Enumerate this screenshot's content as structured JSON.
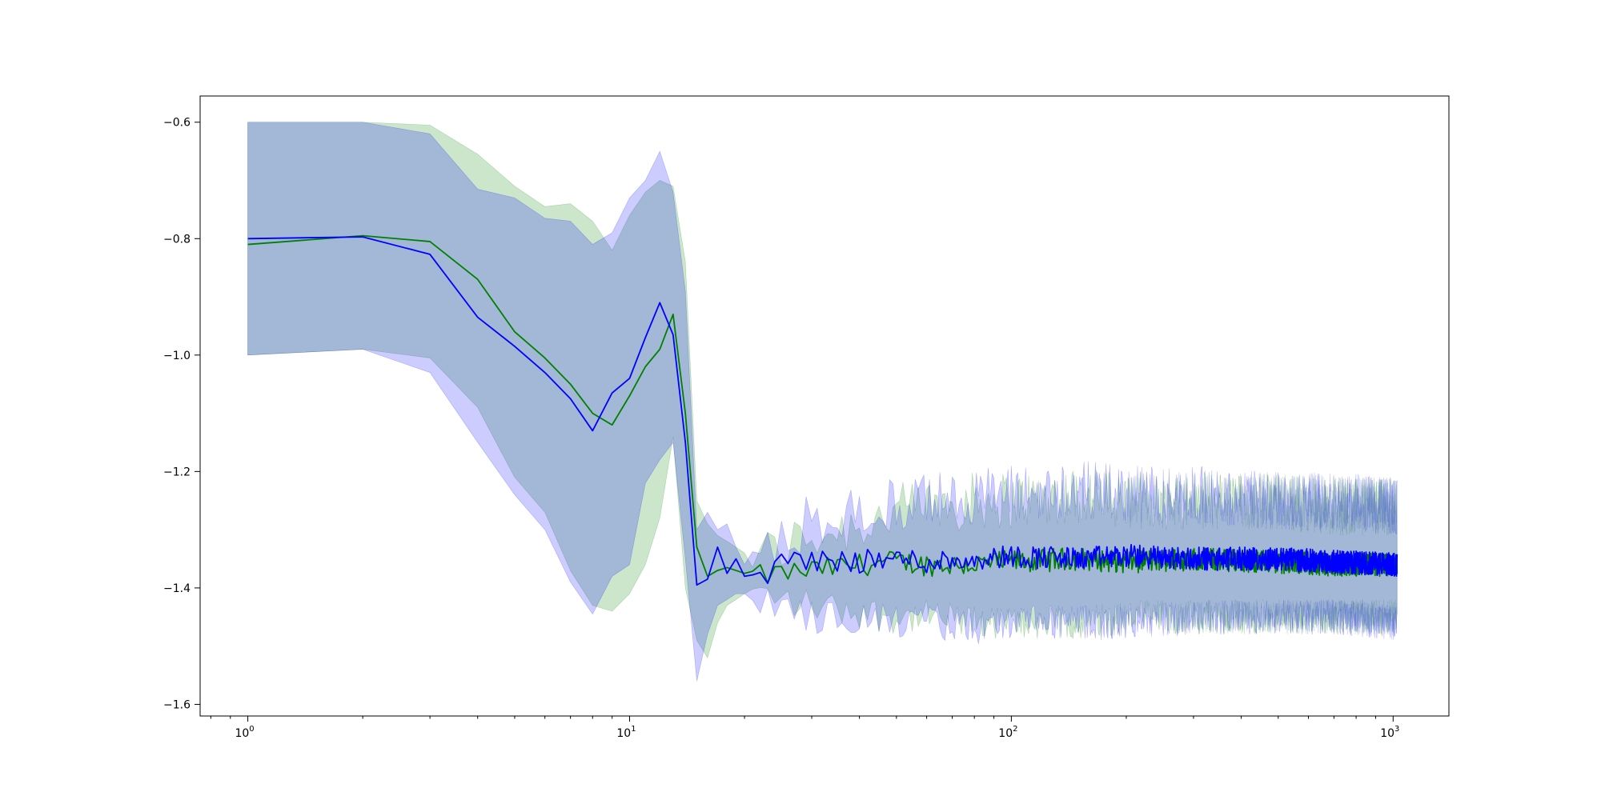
{
  "chart_data": {
    "type": "line",
    "title": "",
    "xlabel": "",
    "ylabel": "",
    "x_scale": "log",
    "xlim": [
      0.75,
      1400
    ],
    "ylim": [
      -1.62,
      -0.555
    ],
    "grid": false,
    "legend": "none",
    "x_ticks": [
      {
        "value": 1,
        "base": "10",
        "exp": "0"
      },
      {
        "value": 10,
        "base": "10",
        "exp": "1"
      },
      {
        "value": 100,
        "base": "10",
        "exp": "2"
      },
      {
        "value": 1000,
        "base": "10",
        "exp": "3"
      }
    ],
    "y_ticks": [
      {
        "value": -0.6,
        "label": "−0.6"
      },
      {
        "value": -0.8,
        "label": "−0.8"
      },
      {
        "value": -1.0,
        "label": "−1.0"
      },
      {
        "value": -1.2,
        "label": "−1.2"
      },
      {
        "value": -1.4,
        "label": "−1.4"
      },
      {
        "value": -1.6,
        "label": "−1.6"
      }
    ],
    "series": [
      {
        "color": "#008000",
        "band_color": "#008000",
        "band_opacity": 0.2,
        "x": [
          1,
          2,
          3,
          4,
          5,
          6,
          7,
          8,
          9,
          10,
          11,
          12,
          13,
          14,
          15,
          16,
          17,
          18,
          19,
          20,
          22,
          25,
          30,
          40,
          50,
          60,
          80,
          100,
          150,
          200,
          300,
          500,
          700,
          1024
        ],
        "mean": [
          -0.81,
          -0.795,
          -0.805,
          -0.87,
          -0.96,
          -1.005,
          -1.05,
          -1.1,
          -1.12,
          -1.07,
          -1.02,
          -0.99,
          -0.93,
          -1.1,
          -1.33,
          -1.38,
          -1.37,
          -1.365,
          -1.37,
          -1.375,
          -1.38,
          -1.375,
          -1.37,
          -1.36,
          -1.355,
          -1.36,
          -1.36,
          -1.355,
          -1.35,
          -1.355,
          -1.35,
          -1.355,
          -1.36,
          -1.36
        ],
        "upper": [
          -0.6,
          -0.6,
          -0.605,
          -0.655,
          -0.71,
          -0.745,
          -0.74,
          -0.77,
          -0.82,
          -0.76,
          -0.72,
          -0.7,
          -0.71,
          -0.84,
          -1.25,
          -1.29,
          -1.31,
          -1.32,
          -1.33,
          -1.34,
          -1.35,
          -1.33,
          -1.31,
          -1.29,
          -1.27,
          -1.26,
          -1.25,
          -1.25,
          -1.24,
          -1.25,
          -1.25,
          -1.25,
          -1.26,
          -1.26
        ],
        "lower": [
          -1.0,
          -0.99,
          -1.005,
          -1.09,
          -1.21,
          -1.27,
          -1.37,
          -1.43,
          -1.44,
          -1.41,
          -1.36,
          -1.28,
          -1.14,
          -1.4,
          -1.49,
          -1.52,
          -1.46,
          -1.43,
          -1.42,
          -1.41,
          -1.41,
          -1.42,
          -1.43,
          -1.44,
          -1.45,
          -1.45,
          -1.46,
          -1.46,
          -1.46,
          -1.45,
          -1.45,
          -1.45,
          -1.45,
          -1.45
        ]
      },
      {
        "color": "#0000ff",
        "band_color": "#0000ff",
        "band_opacity": 0.2,
        "x": [
          1,
          2,
          3,
          4,
          5,
          6,
          7,
          8,
          9,
          10,
          11,
          12,
          13,
          14,
          15,
          16,
          17,
          18,
          19,
          20,
          22,
          25,
          30,
          40,
          50,
          60,
          80,
          100,
          150,
          200,
          300,
          500,
          700,
          1024
        ],
        "mean": [
          -0.8,
          -0.797,
          -0.827,
          -0.935,
          -0.985,
          -1.03,
          -1.075,
          -1.13,
          -1.065,
          -1.04,
          -0.97,
          -0.91,
          -0.965,
          -1.15,
          -1.395,
          -1.385,
          -1.33,
          -1.375,
          -1.35,
          -1.38,
          -1.38,
          -1.36,
          -1.35,
          -1.355,
          -1.35,
          -1.355,
          -1.35,
          -1.345,
          -1.35,
          -1.345,
          -1.35,
          -1.35,
          -1.355,
          -1.36
        ],
        "upper": [
          -0.6,
          -0.6,
          -0.62,
          -0.715,
          -0.73,
          -0.765,
          -0.77,
          -0.81,
          -0.79,
          -0.73,
          -0.7,
          -0.65,
          -0.72,
          -0.89,
          -1.3,
          -1.27,
          -1.3,
          -1.29,
          -1.33,
          -1.36,
          -1.36,
          -1.32,
          -1.28,
          -1.27,
          -1.26,
          -1.25,
          -1.24,
          -1.24,
          -1.23,
          -1.24,
          -1.24,
          -1.25,
          -1.25,
          -1.26
        ],
        "lower": [
          -1.0,
          -0.99,
          -1.03,
          -1.15,
          -1.24,
          -1.3,
          -1.39,
          -1.445,
          -1.38,
          -1.36,
          -1.22,
          -1.18,
          -1.15,
          -1.35,
          -1.56,
          -1.48,
          -1.43,
          -1.42,
          -1.41,
          -1.41,
          -1.42,
          -1.43,
          -1.45,
          -1.45,
          -1.46,
          -1.46,
          -1.47,
          -1.46,
          -1.46,
          -1.46,
          -1.45,
          -1.45,
          -1.45,
          -1.46
        ]
      }
    ]
  }
}
